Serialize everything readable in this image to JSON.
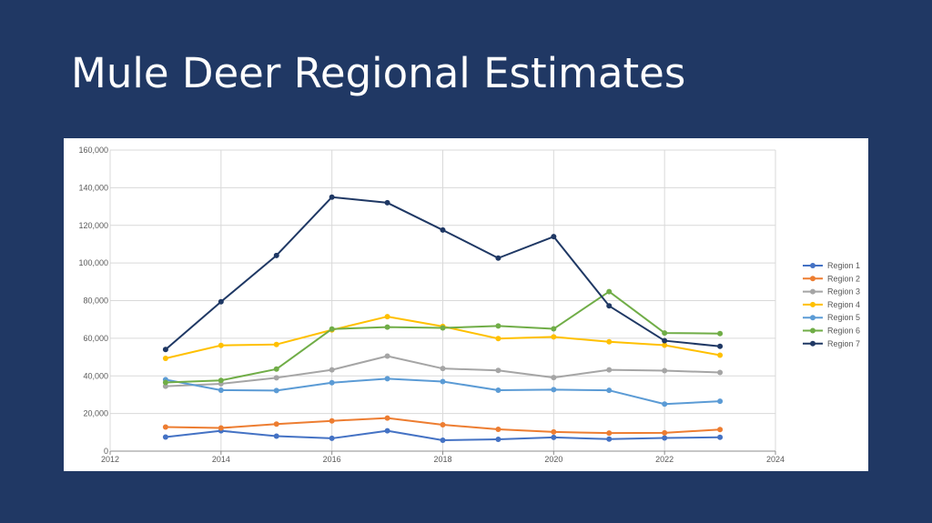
{
  "slide": {
    "title": "Mule Deer Regional Estimates"
  },
  "chart_data": {
    "type": "line",
    "title": "",
    "xlabel": "",
    "ylabel": "",
    "xlim": [
      2012,
      2024
    ],
    "ylim": [
      0,
      160000
    ],
    "x_ticks": [
      2012,
      2014,
      2016,
      2018,
      2020,
      2022,
      2024
    ],
    "x_tick_labels": [
      "2012",
      "2014",
      "2016",
      "2018",
      "2020",
      "2022",
      "2024"
    ],
    "y_ticks": [
      0,
      20000,
      40000,
      60000,
      80000,
      100000,
      120000,
      140000,
      160000
    ],
    "y_tick_labels": [
      "0",
      "20,000",
      "40,000",
      "60,000",
      "80,000",
      "100,000",
      "120,000",
      "140,000",
      "160,000"
    ],
    "grid": true,
    "legend_position": "right",
    "x": [
      2013,
      2014,
      2015,
      2016,
      2017,
      2018,
      2019,
      2020,
      2021,
      2022,
      2023
    ],
    "series": [
      {
        "name": "Region 1",
        "color": "#4472c4",
        "values": [
          7500,
          10800,
          8000,
          6800,
          10800,
          5800,
          6300,
          7300,
          6400,
          7000,
          7400
        ]
      },
      {
        "name": "Region 2",
        "color": "#ed7d31",
        "values": [
          12800,
          12300,
          14400,
          16100,
          17600,
          14000,
          11600,
          10200,
          9600,
          9700,
          11500
        ]
      },
      {
        "name": "Region 3",
        "color": "#a5a5a5",
        "values": [
          34500,
          35800,
          39000,
          43200,
          50500,
          43900,
          42900,
          39100,
          43200,
          42800,
          41800
        ]
      },
      {
        "name": "Region 4",
        "color": "#ffc000",
        "values": [
          49300,
          56200,
          56700,
          64400,
          71500,
          66300,
          59800,
          60700,
          58100,
          56300,
          51000
        ]
      },
      {
        "name": "Region 5",
        "color": "#5b9bd5",
        "values": [
          38000,
          32400,
          32200,
          36400,
          38500,
          37000,
          32400,
          32700,
          32300,
          25000,
          26500
        ]
      },
      {
        "name": "Region 6",
        "color": "#70ad47",
        "values": [
          36500,
          37600,
          43600,
          64900,
          65900,
          65500,
          66500,
          65000,
          84800,
          62800,
          62500
        ]
      },
      {
        "name": "Region 7",
        "color": "#1f3864",
        "values": [
          54000,
          79400,
          104000,
          135000,
          132000,
          117500,
          102600,
          114000,
          77200,
          58700,
          55700
        ]
      }
    ]
  }
}
